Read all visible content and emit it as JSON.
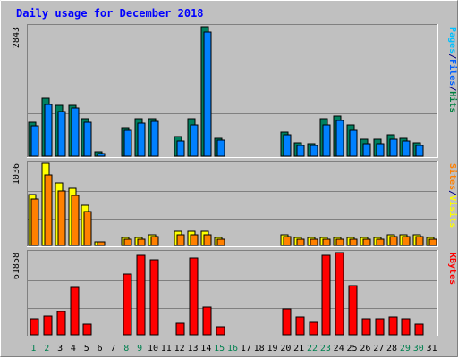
{
  "chart_data": {
    "type": "bar",
    "title": "Daily usage for December 2018",
    "categories": [
      "1",
      "2",
      "3",
      "4",
      "5",
      "6",
      "7",
      "8",
      "9",
      "10",
      "11",
      "12",
      "13",
      "14",
      "15",
      "16",
      "17",
      "18",
      "19",
      "20",
      "21",
      "22",
      "23",
      "24",
      "25",
      "26",
      "27",
      "28",
      "29",
      "30",
      "31"
    ],
    "weekend_days": [
      "1",
      "2",
      "8",
      "9",
      "15",
      "16",
      "22",
      "23",
      "29",
      "30"
    ],
    "panels": [
      {
        "max_label": "2843",
        "ylim": [
          0,
          2843
        ],
        "legend": [
          "Pages",
          "/",
          "Files",
          "/",
          "Hits"
        ],
        "legend_colors": [
          "#00c0ff",
          "#000080",
          "#0060ff",
          "#000080",
          "#008040"
        ],
        "series": [
          {
            "name": "Hits",
            "color": "#008060",
            "values": [
              746,
              1271,
              1116,
              1116,
              821,
              98,
              0,
              630,
              821,
              821,
              0,
              439,
              821,
              2843,
              398,
              0,
              0,
              0,
              0,
              538,
              301,
              284,
              821,
              883,
              686,
              369,
              369,
              469,
              401,
              289,
              0
            ]
          },
          {
            "name": "Files",
            "color": "#0080ff",
            "values": [
              666,
              1132,
              982,
              1052,
              752,
              68,
              0,
              576,
              718,
              758,
              0,
              338,
              686,
              2722,
              349,
              0,
              0,
              0,
              0,
              469,
              243,
              233,
              686,
              793,
              578,
              276,
              276,
              367,
              325,
              230,
              0
            ]
          },
          {
            "name": "Pages",
            "color": "#00c0ff",
            "values": [
              0,
              0,
              0,
              0,
              0,
              0,
              0,
              0,
              0,
              0,
              0,
              0,
              0,
              0,
              0,
              0,
              0,
              0,
              0,
              0,
              0,
              0,
              0,
              0,
              0,
              0,
              0,
              0,
              0,
              0,
              0
            ]
          }
        ]
      },
      {
        "max_label": "1036",
        "ylim": [
          0,
          1036
        ],
        "legend": [
          "Sites",
          "/",
          "Visits"
        ],
        "legend_colors": [
          "#ff8000",
          "#000080",
          "#ffff00"
        ],
        "series": [
          {
            "name": "Visits",
            "color": "#ffff00",
            "values": [
              639,
              1036,
              787,
              718,
              507,
              41,
              0,
              104,
              104,
              139,
              0,
              180,
              180,
              180,
              104,
              0,
              0,
              0,
              0,
              139,
              104,
              104,
              104,
              104,
              104,
              104,
              104,
              139,
              139,
              139,
              104
            ]
          },
          {
            "name": "Sites",
            "color": "#ff8000",
            "values": [
              590,
              892,
              683,
              627,
              424,
              41,
              0,
              83,
              83,
              111,
              0,
              139,
              139,
              139,
              83,
              0,
              0,
              0,
              0,
              111,
              83,
              83,
              83,
              83,
              83,
              83,
              83,
              111,
              111,
              111,
              83
            ]
          }
        ]
      },
      {
        "max_label": "61858",
        "ylim": [
          0,
          61858
        ],
        "legend": [
          "KBytes"
        ],
        "legend_colors": [
          "#ff0000"
        ],
        "series": [
          {
            "name": "KBytes",
            "color": "#ff0000",
            "values": [
              11800,
              14200,
              17200,
              35600,
              8400,
              0,
              0,
              45800,
              60100,
              56500,
              0,
              8600,
              58000,
              21000,
              5800,
              0,
              0,
              0,
              0,
              19700,
              13500,
              9500,
              60100,
              62000,
              37300,
              11800,
              11800,
              13500,
              11800,
              8400,
              0
            ]
          }
        ]
      }
    ]
  }
}
